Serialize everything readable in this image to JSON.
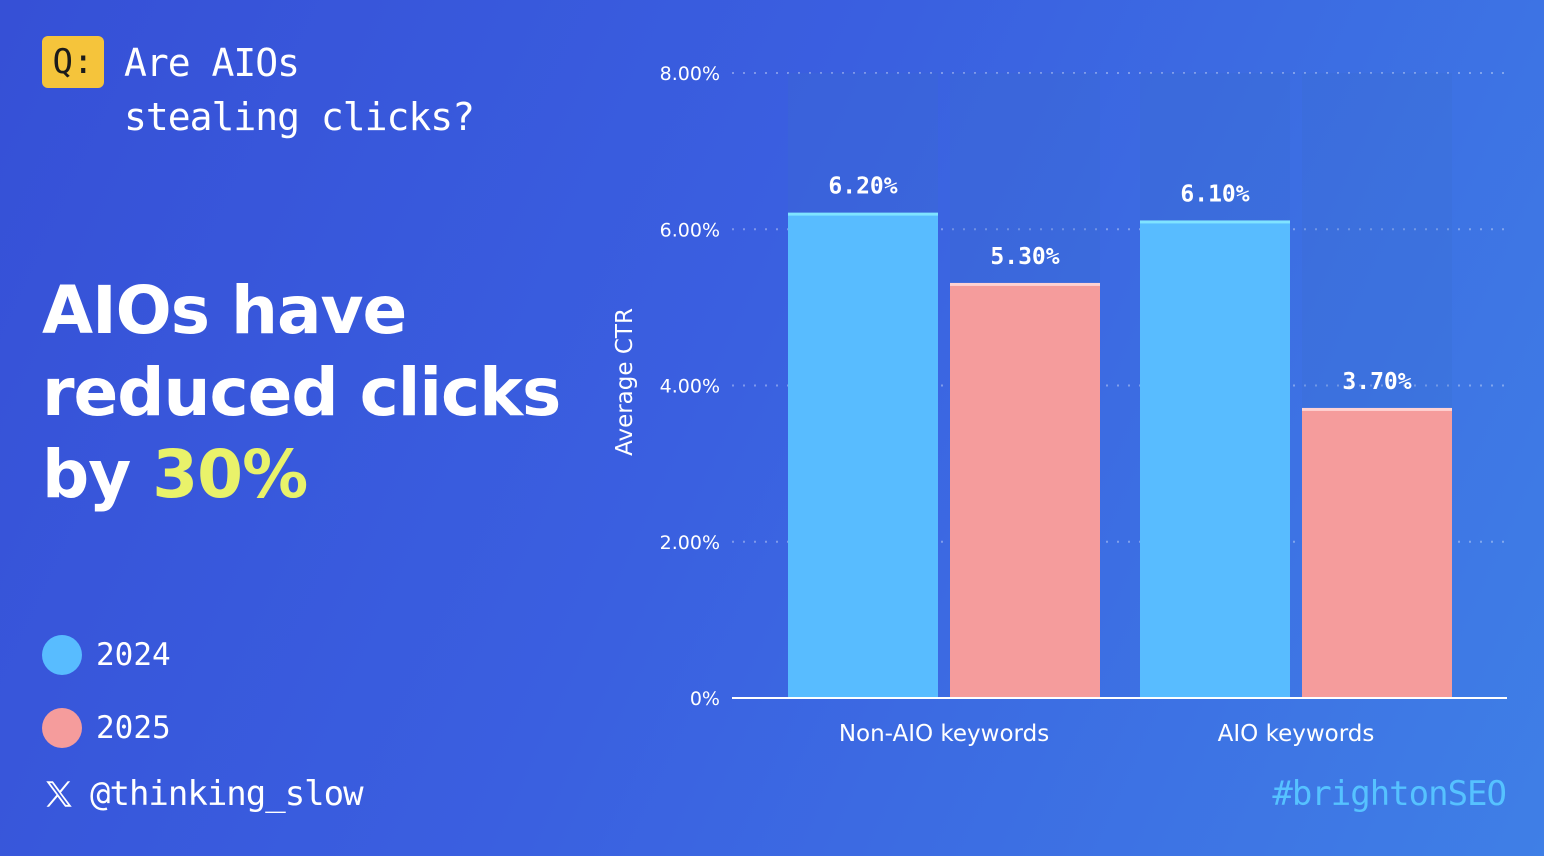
{
  "question": {
    "badge": "Q:",
    "text": "Are AIOs\nstealing clicks?"
  },
  "headline": {
    "prefix": "AIOs have reduced clicks by ",
    "highlight": "30%"
  },
  "legend": [
    {
      "label": "2024",
      "color": "#58bcff"
    },
    {
      "label": "2025",
      "color": "#f59c9c"
    }
  ],
  "footer": {
    "handle": "@thinking_slow",
    "hashtag": "#brightonSEO",
    "handle_icon": "x-logo-icon"
  },
  "colors": {
    "accent_yellow": "#e9f26a",
    "badge": "#f5c43b",
    "hashtag": "#56c2ff"
  },
  "chart_data": {
    "type": "bar",
    "categories": [
      "Non-AIO keywords",
      "AIO keywords"
    ],
    "series": [
      {
        "name": "2024",
        "values": [
          6.2,
          6.1
        ],
        "labels": [
          "6.20%",
          "6.10%"
        ],
        "color": "#58bcff"
      },
      {
        "name": "2025",
        "values": [
          5.3,
          3.7
        ],
        "labels": [
          "5.30%",
          "3.70%"
        ],
        "color": "#f59c9c"
      }
    ],
    "ylabel": "Average CTR",
    "ylim": [
      0,
      8
    ],
    "yticks": [
      {
        "value": 0,
        "label": "0%"
      },
      {
        "value": 2,
        "label": "2.00%"
      },
      {
        "value": 4,
        "label": "4.00%"
      },
      {
        "value": 6,
        "label": "6.00%"
      },
      {
        "value": 8,
        "label": "8.00%"
      }
    ],
    "grid": true,
    "legend": "left"
  }
}
